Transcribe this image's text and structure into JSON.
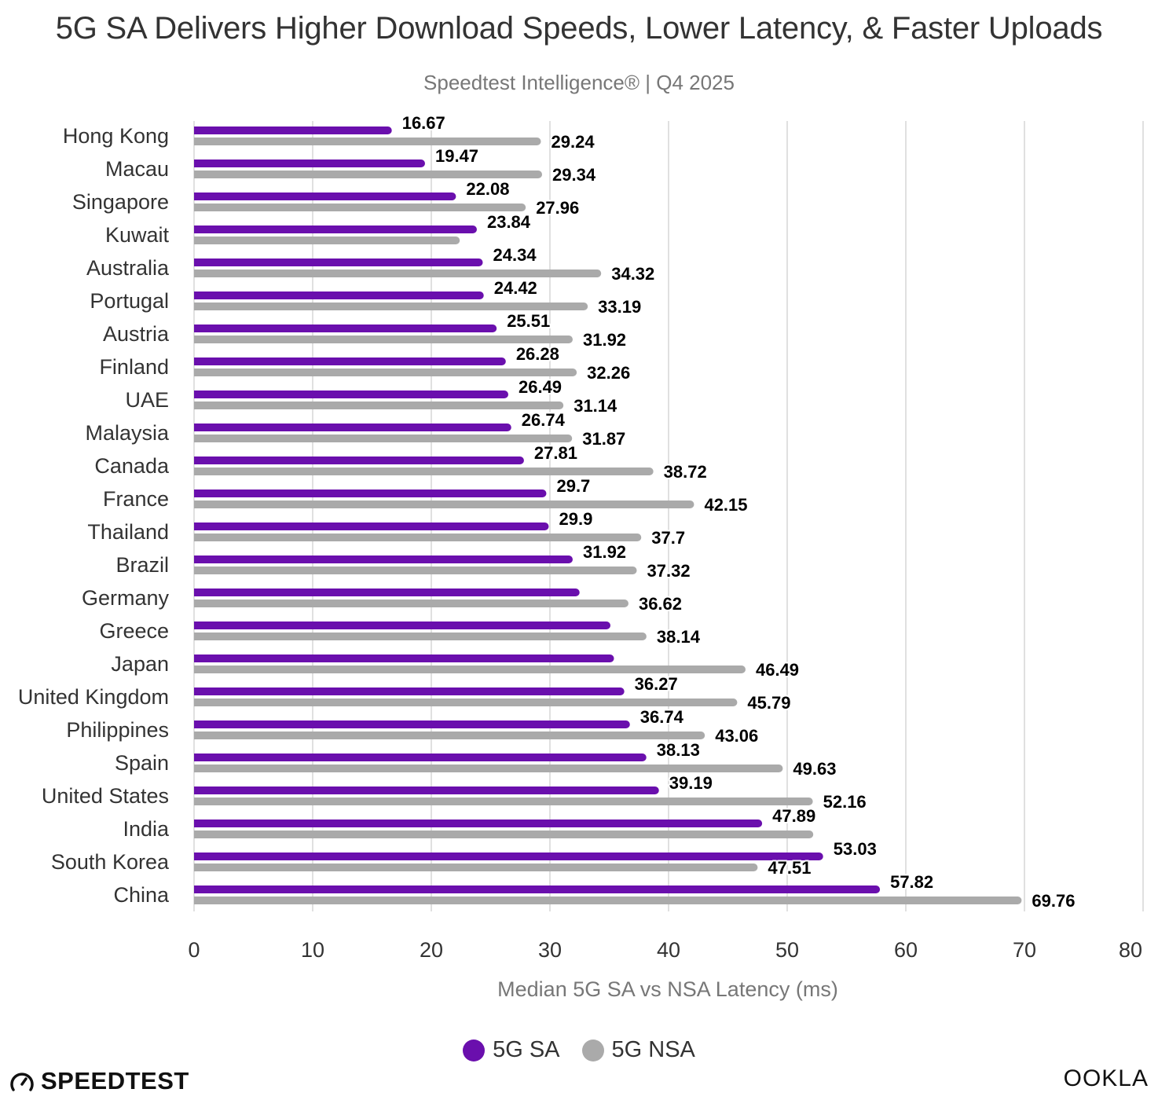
{
  "header": {
    "title": "5G SA Delivers Higher Download Speeds, Lower Latency, & Faster Uploads",
    "subtitle": "Speedtest Intelligence® | Q4 2025"
  },
  "colors": {
    "sa": "#6a0fad",
    "nsa": "#aaaaaa",
    "grid": "#e0e0e0"
  },
  "legend": [
    {
      "label": "5G SA",
      "color": "#6a0fad"
    },
    {
      "label": "5G NSA",
      "color": "#aaaaaa"
    }
  ],
  "footer": {
    "left_logo": "SPEEDTEST",
    "right_logo": "OOKLA"
  },
  "chart_data": {
    "type": "bar",
    "orientation": "horizontal",
    "title": "5G SA Delivers Higher Download Speeds, Lower Latency, & Faster Uploads",
    "subtitle": "Speedtest Intelligence® | Q4 2025",
    "xlabel": "Median 5G SA vs NSA Latency (ms)",
    "ylabel": "",
    "xlim": [
      0,
      80
    ],
    "xticks": [
      0,
      10,
      20,
      30,
      40,
      50,
      60,
      70,
      80
    ],
    "grid": true,
    "legend_position": "bottom",
    "categories": [
      "Hong Kong",
      "Macau",
      "Singapore",
      "Kuwait",
      "Australia",
      "Portugal",
      "Austria",
      "Finland",
      "UAE",
      "Malaysia",
      "Canada",
      "France",
      "Thailand",
      "Brazil",
      "Germany",
      "Greece",
      "Japan",
      "United Kingdom",
      "Philippines",
      "Spain",
      "United States",
      "India",
      "South Korea",
      "China"
    ],
    "series": [
      {
        "name": "5G SA",
        "values": [
          16.67,
          19.47,
          22.08,
          23.84,
          24.34,
          24.42,
          25.51,
          26.28,
          26.49,
          26.74,
          27.81,
          29.7,
          29.9,
          31.92,
          32.5,
          35.1,
          35.4,
          36.27,
          36.74,
          38.13,
          39.19,
          47.89,
          53.03,
          57.82
        ],
        "labels": [
          "16.67",
          "19.47",
          "22.08",
          "23.84",
          "24.34",
          "24.42",
          "25.51",
          "26.28",
          "26.49",
          "26.74",
          "27.81",
          "29.7",
          "29.9",
          "31.92",
          "",
          "",
          "",
          "36.27",
          "36.74",
          "38.13",
          "39.19",
          "47.89",
          "53.03",
          "57.82"
        ]
      },
      {
        "name": "5G NSA",
        "values": [
          29.24,
          29.34,
          27.96,
          22.4,
          34.32,
          33.19,
          31.92,
          32.26,
          31.14,
          31.87,
          38.72,
          42.15,
          37.7,
          37.32,
          36.62,
          38.14,
          46.49,
          45.79,
          43.06,
          49.63,
          52.16,
          52.2,
          47.51,
          69.76
        ],
        "labels": [
          "29.24",
          "29.34",
          "27.96",
          "",
          "34.32",
          "33.19",
          "31.92",
          "32.26",
          "31.14",
          "31.87",
          "38.72",
          "42.15",
          "37.7",
          "37.32",
          "36.62",
          "38.14",
          "46.49",
          "45.79",
          "43.06",
          "49.63",
          "52.16",
          "",
          "47.51",
          "69.76"
        ]
      }
    ]
  }
}
